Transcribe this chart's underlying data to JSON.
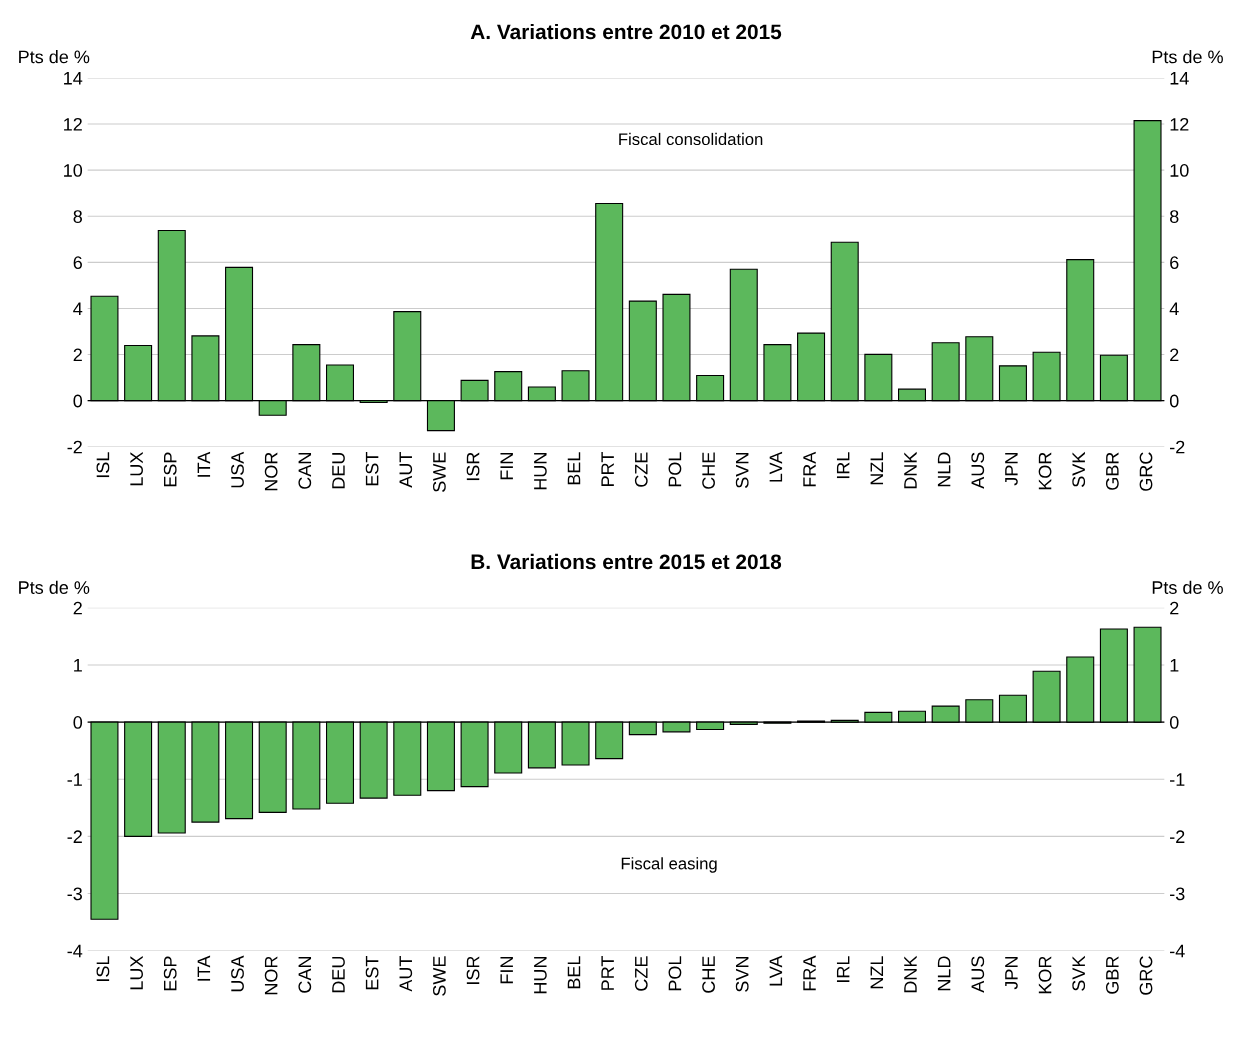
{
  "chart_data": [
    {
      "type": "bar",
      "title": "A. Variations entre 2010 et 2015",
      "ylabel": "Pts de %",
      "y2label": "Pts de %",
      "annotations": [
        "Fiscal consolidation"
      ],
      "categories": [
        "ISL",
        "LUX",
        "ESP",
        "ITA",
        "USA",
        "NOR",
        "CAN",
        "DEU",
        "EST",
        "AUT",
        "SWE",
        "ISR",
        "FIN",
        "HUN",
        "BEL",
        "PRT",
        "CZE",
        "POL",
        "CHE",
        "SVN",
        "LVA",
        "FRA",
        "IRL",
        "NZL",
        "DNK",
        "NLD",
        "AUS",
        "JPN",
        "KOR",
        "SVK",
        "GBR",
        "GRC"
      ],
      "values": [
        4.53,
        2.39,
        7.38,
        2.81,
        5.78,
        -0.63,
        2.43,
        1.55,
        -0.08,
        3.86,
        -1.3,
        0.88,
        1.26,
        0.59,
        1.3,
        8.55,
        4.32,
        4.61,
        1.09,
        5.7,
        2.43,
        2.93,
        6.87,
        2.01,
        0.5,
        2.51,
        2.77,
        1.51,
        2.1,
        6.12,
        1.97,
        12.15
      ],
      "color": "#5cb85c",
      "ylim": [
        -2,
        14
      ],
      "yticks": [
        -2,
        0,
        2,
        4,
        6,
        8,
        10,
        12,
        14
      ],
      "y2lim": [
        -2,
        14
      ],
      "y2ticks": [
        -2,
        0,
        2,
        4,
        6,
        8,
        10,
        12,
        14
      ],
      "grid": "y",
      "legend": false
    },
    {
      "type": "bar",
      "title": "B. Variations entre 2015 et 2018",
      "ylabel": "Pts de %",
      "y2label": "Pts de %",
      "annotations": [
        "Fiscal easing"
      ],
      "categories": [
        "ISL",
        "LUX",
        "ESP",
        "ITA",
        "USA",
        "NOR",
        "CAN",
        "DEU",
        "EST",
        "AUT",
        "SWE",
        "ISR",
        "FIN",
        "HUN",
        "BEL",
        "PRT",
        "CZE",
        "POL",
        "CHE",
        "SVN",
        "LVA",
        "FRA",
        "IRL",
        "NZL",
        "DNK",
        "NLD",
        "AUS",
        "JPN",
        "KOR",
        "SVK",
        "GBR",
        "GRC"
      ],
      "values": [
        -3.45,
        -2.0,
        -1.94,
        -1.75,
        -1.69,
        -1.58,
        -1.52,
        -1.42,
        -1.33,
        -1.28,
        -1.2,
        -1.13,
        -0.89,
        -0.8,
        -0.75,
        -0.64,
        -0.22,
        -0.17,
        -0.13,
        -0.04,
        -0.02,
        0.02,
        0.03,
        0.17,
        0.19,
        0.28,
        0.39,
        0.47,
        0.89,
        1.14,
        1.63,
        1.66
      ],
      "color": "#5cb85c",
      "ylim": [
        -4,
        2
      ],
      "yticks": [
        -4,
        -3,
        -2,
        -1,
        0,
        1,
        2
      ],
      "y2lim": [
        -4,
        2
      ],
      "y2ticks": [
        -4,
        -3,
        -2,
        -1,
        0,
        1,
        2
      ],
      "grid": "y",
      "legend": false
    }
  ]
}
